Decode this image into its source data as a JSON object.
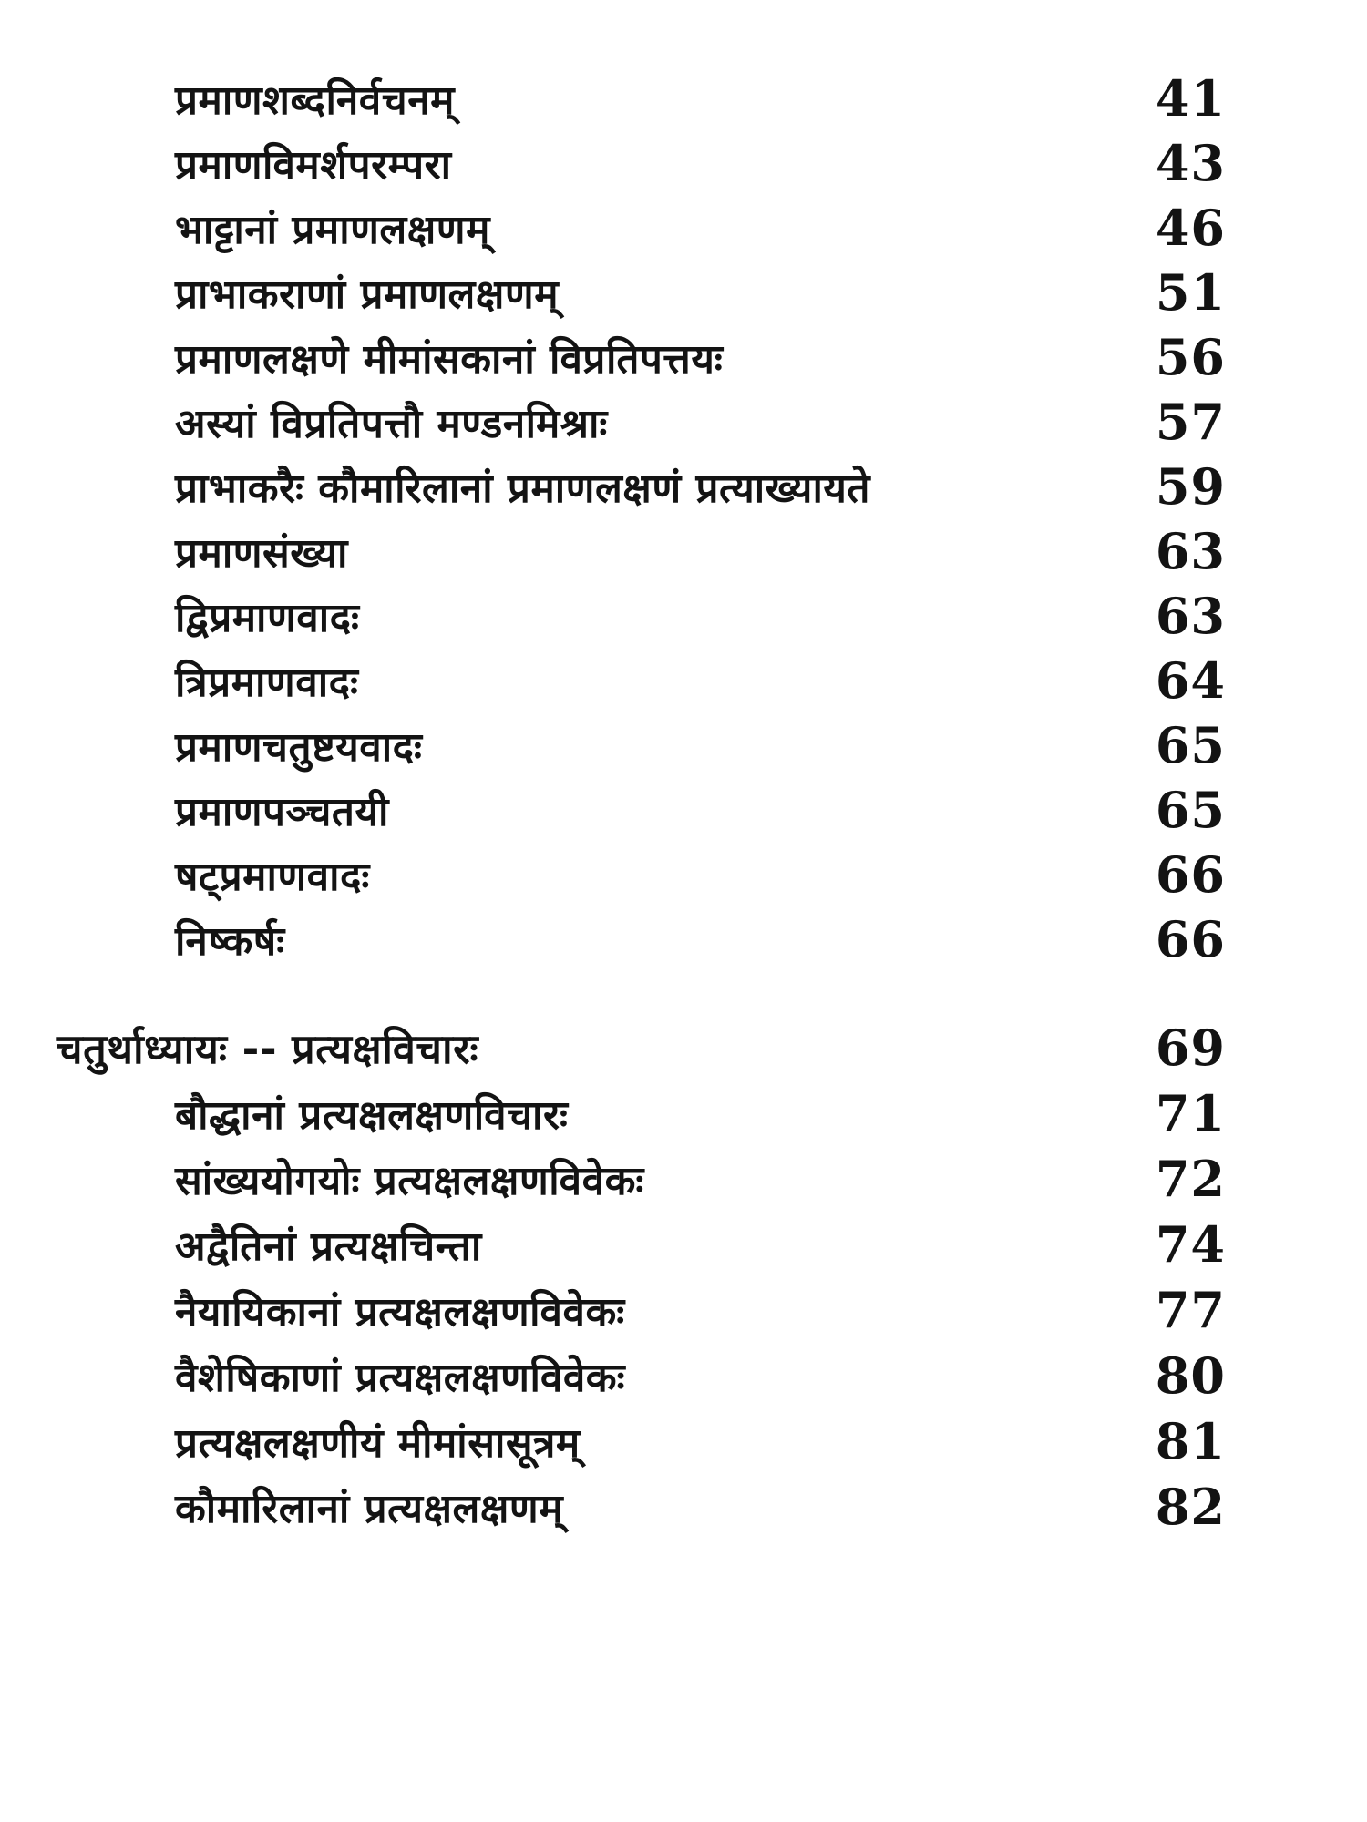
{
  "page": {
    "background_color": "#ffffff",
    "text_color": "#131313",
    "kind": "book-table-of-contents-scan",
    "language": "Sanskrit (Devanagari)"
  },
  "toc": {
    "section1": [
      {
        "title": "प्रमाणशब्दनिर्वचनम्",
        "page": "41"
      },
      {
        "title": "प्रमाणविमर्शपरम्परा",
        "page": "43"
      },
      {
        "title": "भाट्टानां प्रमाणलक्षणम्",
        "page": "46"
      },
      {
        "title": "प्राभाकराणां प्रमाणलक्षणम्",
        "page": "51"
      },
      {
        "title": "प्रमाणलक्षणे मीमांसकानां विप्रतिपत्तयः",
        "page": "56"
      },
      {
        "title": "अस्यां विप्रतिपत्तौ मण्डनमिश्राः",
        "page": "57"
      },
      {
        "title": "प्राभाकरैः कौमारिलानां प्रमाणलक्षणं प्रत्याख्यायते",
        "page": "59"
      },
      {
        "title": "प्रमाणसंख्या",
        "page": "63"
      },
      {
        "title": "द्विप्रमाणवादः",
        "page": "63"
      },
      {
        "title": "त्रिप्रमाणवादः",
        "page": "64"
      },
      {
        "title": "प्रमाणचतुष्टयवादः",
        "page": "65"
      },
      {
        "title": "प्रमाणपञ्चतयी",
        "page": "65"
      },
      {
        "title": "षट्प्रमाणवादः",
        "page": "66"
      },
      {
        "title": "निष्कर्षः",
        "page": "66"
      }
    ],
    "chapter": {
      "title": "चतुर्थाध्यायः -- प्रत्यक्षविचारः",
      "page": "69"
    },
    "section2": [
      {
        "title": "बौद्धानां प्रत्यक्षलक्षणविचारः",
        "page": "71"
      },
      {
        "title": "सांख्ययोगयोः प्रत्यक्षलक्षणविवेकः",
        "page": "72"
      },
      {
        "title": "अद्वैतिनां प्रत्यक्षचिन्ता",
        "page": "74"
      },
      {
        "title": "नैयायिकानां प्रत्यक्षलक्षणविवेकः",
        "page": "77"
      },
      {
        "title": "वैशेषिकाणां प्रत्यक्षलक्षणविवेकः",
        "page": "80"
      },
      {
        "title": "प्रत्यक्षलक्षणीयं मीमांसासूत्रम्",
        "page": "81"
      },
      {
        "title": "कौमारिलानां प्रत्यक्षलक्षणम्",
        "page": "82"
      }
    ]
  }
}
